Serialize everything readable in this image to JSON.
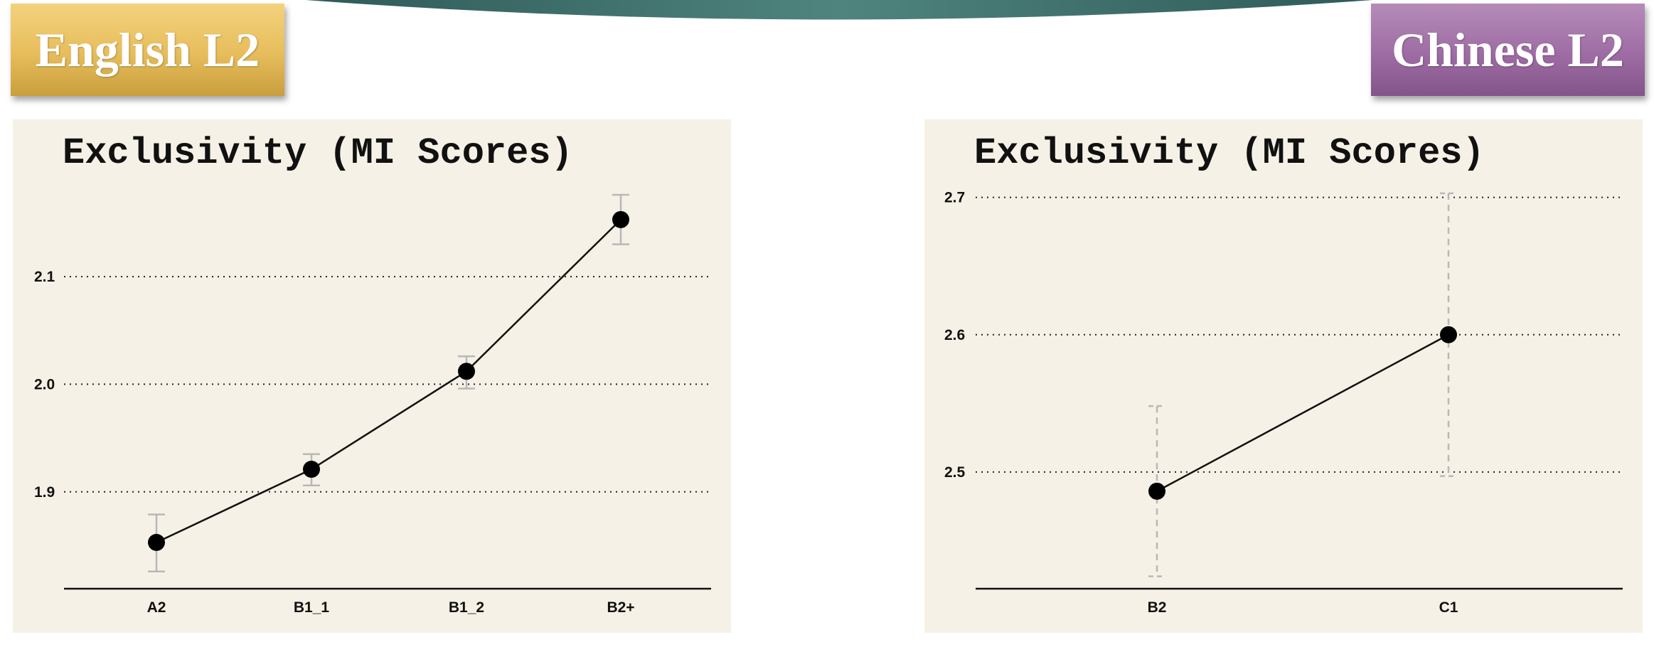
{
  "labels": {
    "left": "English L2",
    "right": "Chinese L2"
  },
  "colors": {
    "gold": "#e7bd5c",
    "purple": "#9e6ca4",
    "panel_bg": "#f6f1e6",
    "banner": "#3d6e6a"
  },
  "chart_data": [
    {
      "type": "line",
      "title": "Exclusivity (MI Scores)",
      "xlabel": "",
      "ylabel": "",
      "categories": [
        "A2",
        "B1_1",
        "B1_2",
        "B2+"
      ],
      "values": [
        1.853,
        1.921,
        2.012,
        2.153
      ],
      "error_low": [
        1.826,
        1.906,
        1.996,
        2.13
      ],
      "error_high": [
        1.879,
        1.935,
        2.026,
        2.176
      ],
      "error_style": "solid",
      "ylim": [
        1.81,
        2.18
      ],
      "yticks": [
        1.9,
        2.0,
        2.1
      ],
      "ytick_labels": [
        "1.9",
        "2.0",
        "2.1"
      ],
      "grid": true
    },
    {
      "type": "line",
      "title": "Exclusivity (MI Scores)",
      "xlabel": "",
      "ylabel": "",
      "categories": [
        "B2",
        "C1"
      ],
      "values": [
        2.486,
        2.6
      ],
      "error_low": [
        2.424,
        2.497
      ],
      "error_high": [
        2.548,
        2.703
      ],
      "error_style": "dashed",
      "ylim": [
        2.415,
        2.705
      ],
      "yticks": [
        2.5,
        2.6,
        2.7
      ],
      "ytick_labels": [
        "2.5",
        "2.6",
        "2.7"
      ],
      "grid": true
    }
  ]
}
